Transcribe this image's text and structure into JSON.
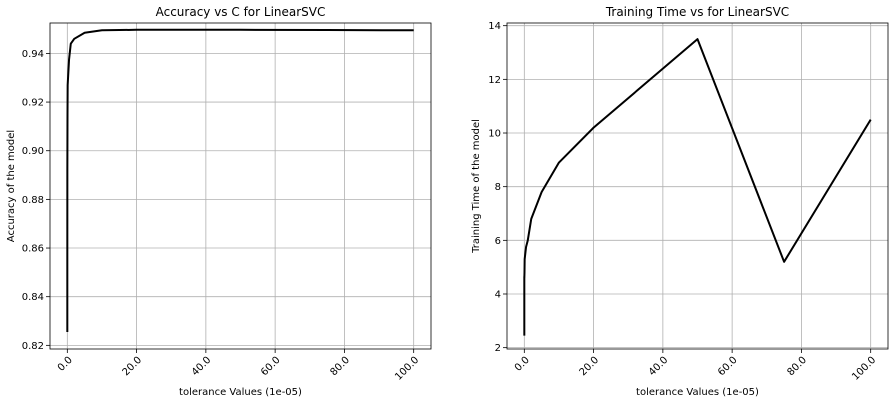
{
  "chart_data": [
    {
      "type": "line",
      "title": "Accuracy vs C for LinearSVC",
      "xlabel": "tolerance Values (1e-05)",
      "ylabel": "Accuracy of the model",
      "xlim": [
        -5,
        105
      ],
      "ylim": [
        0.8185,
        0.9525
      ],
      "xticks": [
        0,
        20,
        40,
        60,
        80,
        100
      ],
      "xtick_labels": [
        "0.0",
        "20.0",
        "40.0",
        "60.0",
        "80.0",
        "100.0"
      ],
      "yticks": [
        0.82,
        0.84,
        0.86,
        0.88,
        0.9,
        0.92,
        0.94
      ],
      "ytick_labels": [
        "0.82",
        "0.84",
        "0.86",
        "0.88",
        "0.90",
        "0.92",
        "0.94"
      ],
      "grid": true,
      "series": [
        {
          "color": "#000000",
          "x": [
            0.0001,
            0.001,
            0.01,
            0.05,
            0.1,
            0.5,
            1,
            2,
            5,
            10,
            20,
            50,
            75,
            100
          ],
          "y": [
            0.8255,
            0.858,
            0.892,
            0.914,
            0.927,
            0.9375,
            0.944,
            0.946,
            0.9485,
            0.9495,
            0.9497,
            0.9497,
            0.9496,
            0.9495
          ]
        }
      ]
    },
    {
      "type": "line",
      "title": "Training Time vs for LinearSVC",
      "xlabel": "tolerance Values (1e-05)",
      "ylabel": "Training Time of the model",
      "xlim": [
        -5,
        105
      ],
      "ylim": [
        1.95,
        14.1
      ],
      "xticks": [
        0,
        20,
        40,
        60,
        80,
        100
      ],
      "xtick_labels": [
        "0.0",
        "20.0",
        "40.0",
        "60.0",
        "80.0",
        "100.0"
      ],
      "yticks": [
        2,
        4,
        6,
        8,
        10,
        12,
        14
      ],
      "ytick_labels": [
        "2",
        "4",
        "6",
        "8",
        "10",
        "12",
        "14"
      ],
      "grid": true,
      "series": [
        {
          "color": "#000000",
          "x": [
            0.0001,
            0.001,
            0.01,
            0.05,
            0.1,
            0.5,
            1,
            2,
            5,
            10,
            20,
            50,
            75,
            100
          ],
          "y": [
            2.45,
            4.65,
            4.6,
            4.8,
            5.3,
            5.75,
            6.0,
            6.8,
            7.8,
            8.9,
            10.2,
            13.5,
            5.2,
            10.5
          ]
        }
      ]
    }
  ]
}
